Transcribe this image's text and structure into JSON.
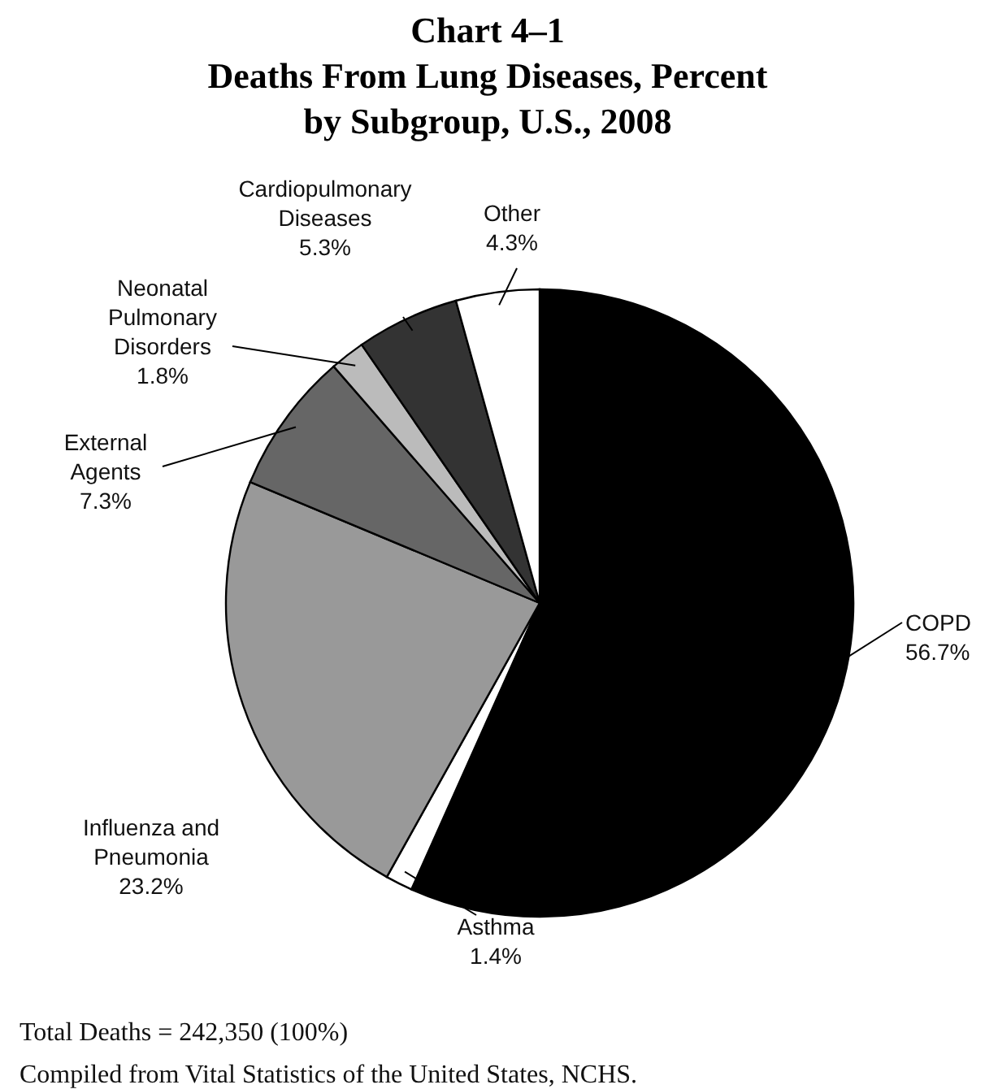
{
  "chart_data": {
    "type": "pie",
    "title": "Chart 4–1\nDeaths From Lung Diseases, Percent\nby Subgroup, U.S., 2008",
    "categories": [
      "COPD",
      "Asthma",
      "Influenza and\nPneumonia",
      "External\nAgents",
      "Neonatal\nPulmonary\nDisorders",
      "Cardiopulmonary\nDiseases",
      "Other"
    ],
    "values": [
      56.7,
      1.4,
      23.2,
      7.3,
      1.8,
      5.3,
      4.3
    ],
    "value_labels": [
      "56.7%",
      "1.4%",
      "23.2%",
      "7.3%",
      "1.8%",
      "5.3%",
      "4.3%"
    ],
    "colors": [
      "#000000",
      "#ffffff",
      "#999999",
      "#666666",
      "#bbbbbb",
      "#333333",
      "#ffffff"
    ],
    "annotations": [
      "Total Deaths = 242,350 (100%)",
      "Compiled from Vital Statistics of the United States, NCHS."
    ]
  }
}
